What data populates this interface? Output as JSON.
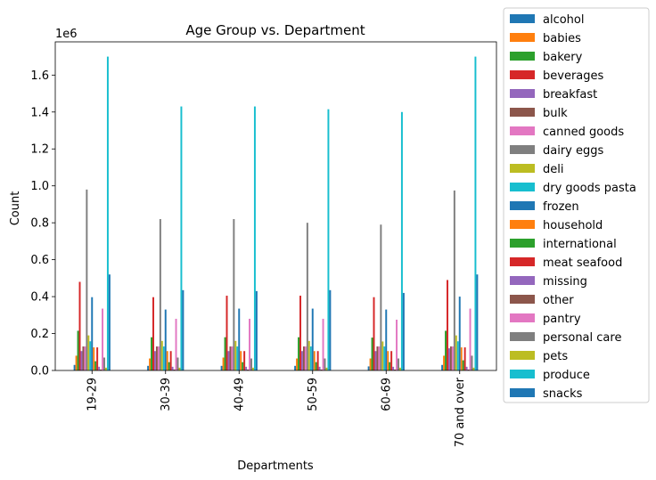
{
  "chart_data": {
    "type": "bar",
    "title": "Age Group vs. Department",
    "xlabel": "Departments",
    "ylabel": "Count",
    "y_offset_label": "1e6",
    "y_multiplier": 1000000,
    "ylim": [
      0,
      1.78
    ],
    "yticks": [
      0.0,
      0.2,
      0.4,
      0.6,
      0.8,
      1.0,
      1.2,
      1.4,
      1.6
    ],
    "ytick_labels": [
      "0.0",
      "0.2",
      "0.4",
      "0.6",
      "0.8",
      "1.0",
      "1.2",
      "1.4",
      "1.6"
    ],
    "grid": false,
    "legend_position": "outside-right",
    "categories": [
      "19-29",
      "30-39",
      "40-49",
      "50-59",
      "60-69",
      "70 and over"
    ],
    "series": [
      {
        "name": "alcohol",
        "color": "#1f77b4",
        "values": [
          0.03,
          0.025,
          0.025,
          0.025,
          0.022,
          0.03
        ]
      },
      {
        "name": "babies",
        "color": "#ff7f0e",
        "values": [
          0.08,
          0.065,
          0.07,
          0.065,
          0.065,
          0.08
        ]
      },
      {
        "name": "bakery",
        "color": "#2ca02c",
        "values": [
          0.215,
          0.18,
          0.18,
          0.18,
          0.178,
          0.215
        ]
      },
      {
        "name": "beverages",
        "color": "#d62728",
        "values": [
          0.48,
          0.397,
          0.405,
          0.405,
          0.397,
          0.49
        ]
      },
      {
        "name": "breakfast",
        "color": "#9467bd",
        "values": [
          0.105,
          0.105,
          0.105,
          0.105,
          0.105,
          0.12
        ]
      },
      {
        "name": "bulk",
        "color": "#8c564b",
        "values": [
          0.13,
          0.13,
          0.13,
          0.13,
          0.13,
          0.13
        ]
      },
      {
        "name": "canned goods",
        "color": "#e377c2",
        "values": [
          0.13,
          0.13,
          0.13,
          0.13,
          0.13,
          0.13
        ]
      },
      {
        "name": "dairy eggs",
        "color": "#7f7f7f",
        "values": [
          0.98,
          0.82,
          0.82,
          0.8,
          0.79,
          0.975
        ]
      },
      {
        "name": "deli",
        "color": "#bcbd22",
        "values": [
          0.19,
          0.16,
          0.16,
          0.16,
          0.157,
          0.19
        ]
      },
      {
        "name": "dry goods pasta",
        "color": "#17becf",
        "values": [
          0.158,
          0.13,
          0.13,
          0.13,
          0.13,
          0.158
        ]
      },
      {
        "name": "frozen",
        "color": "#1f77b4",
        "values": [
          0.397,
          0.33,
          0.335,
          0.335,
          0.33,
          0.4
        ]
      },
      {
        "name": "household",
        "color": "#ff7f0e",
        "values": [
          0.125,
          0.105,
          0.105,
          0.105,
          0.105,
          0.125
        ]
      },
      {
        "name": "international",
        "color": "#2ca02c",
        "values": [
          0.05,
          0.045,
          0.045,
          0.045,
          0.045,
          0.055
        ]
      },
      {
        "name": "meat seafood",
        "color": "#d62728",
        "values": [
          0.125,
          0.105,
          0.105,
          0.105,
          0.105,
          0.125
        ]
      },
      {
        "name": "missing",
        "color": "#9467bd",
        "values": [
          0.02,
          0.02,
          0.02,
          0.02,
          0.02,
          0.02
        ]
      },
      {
        "name": "other",
        "color": "#8c564b",
        "values": [
          0.005,
          0.005,
          0.005,
          0.005,
          0.005,
          0.005
        ]
      },
      {
        "name": "pantry",
        "color": "#e377c2",
        "values": [
          0.335,
          0.28,
          0.28,
          0.28,
          0.275,
          0.335
        ]
      },
      {
        "name": "personal care",
        "color": "#7f7f7f",
        "values": [
          0.07,
          0.07,
          0.065,
          0.065,
          0.065,
          0.08
        ]
      },
      {
        "name": "pets",
        "color": "#bcbd22",
        "values": [
          0.015,
          0.015,
          0.015,
          0.015,
          0.015,
          0.015
        ]
      },
      {
        "name": "produce",
        "color": "#17becf",
        "values": [
          1.7,
          1.43,
          1.43,
          1.415,
          1.4,
          1.7
        ]
      },
      {
        "name": "snacks",
        "color": "#1f77b4",
        "values": [
          0.52,
          0.435,
          0.43,
          0.435,
          0.42,
          0.52
        ]
      }
    ]
  }
}
